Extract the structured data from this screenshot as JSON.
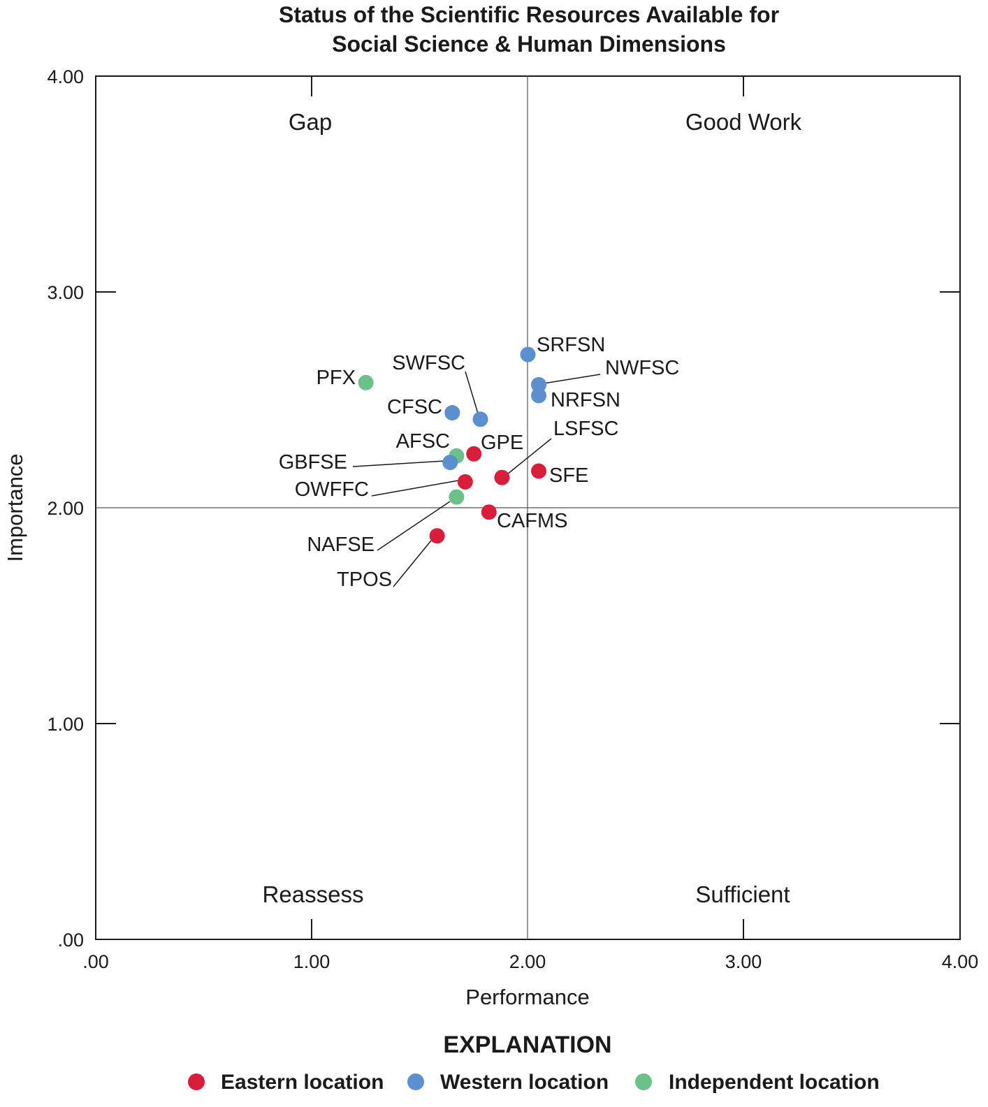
{
  "chart_data": {
    "type": "scatter",
    "title_lines": [
      "Status of the Scientific Resources Available for",
      "Social Science & Human Dimensions"
    ],
    "xlabel": "Performance",
    "ylabel": "Importance",
    "xlim": [
      0,
      4
    ],
    "ylim": [
      0,
      4
    ],
    "x_ticks": [
      ".00",
      "1.00",
      "2.00",
      "3.00",
      "4.00"
    ],
    "y_ticks": [
      ".00",
      "1.00",
      "2.00",
      "3.00",
      "4.00"
    ],
    "quadrants": {
      "top_left": "Gap",
      "top_right": "Good Work",
      "bottom_left": "Reassess",
      "bottom_right": "Sufficient"
    },
    "colors": {
      "eastern": "#d81e3a",
      "western": "#5b8fd0",
      "independent": "#6cc18a"
    },
    "legend": {
      "title": "EXPLANATION",
      "items": [
        {
          "key": "eastern",
          "label": "Eastern location"
        },
        {
          "key": "western",
          "label": "Western location"
        },
        {
          "key": "independent",
          "label": "Independent location"
        }
      ]
    },
    "points": [
      {
        "label": "SRFSN",
        "group": "western",
        "x": 2.0,
        "y": 2.71
      },
      {
        "label": "NWFSC",
        "group": "western",
        "x": 2.05,
        "y": 2.57
      },
      {
        "label": "NRFSN",
        "group": "western",
        "x": 2.05,
        "y": 2.52
      },
      {
        "label": "SWFSC",
        "group": "western",
        "x": 1.78,
        "y": 2.41
      },
      {
        "label": "CFSC",
        "group": "western",
        "x": 1.65,
        "y": 2.44
      },
      {
        "label": "PFX",
        "group": "independent",
        "x": 1.25,
        "y": 2.58
      },
      {
        "label": "AFSC",
        "group": "independent",
        "x": 1.67,
        "y": 2.24
      },
      {
        "label": "GPE",
        "group": "eastern",
        "x": 1.75,
        "y": 2.25
      },
      {
        "label": "GBFSE",
        "group": "western",
        "x": 1.64,
        "y": 2.21
      },
      {
        "label": "LSFSC",
        "group": "eastern",
        "x": 1.88,
        "y": 2.14
      },
      {
        "label": "SFE",
        "group": "eastern",
        "x": 2.05,
        "y": 2.17
      },
      {
        "label": "OWFFC",
        "group": "eastern",
        "x": 1.71,
        "y": 2.12
      },
      {
        "label": "NAFSE",
        "group": "independent",
        "x": 1.67,
        "y": 2.05
      },
      {
        "label": "CAFMS",
        "group": "eastern",
        "x": 1.82,
        "y": 1.98
      },
      {
        "label": "TPOS",
        "group": "eastern",
        "x": 1.58,
        "y": 1.87
      }
    ]
  }
}
